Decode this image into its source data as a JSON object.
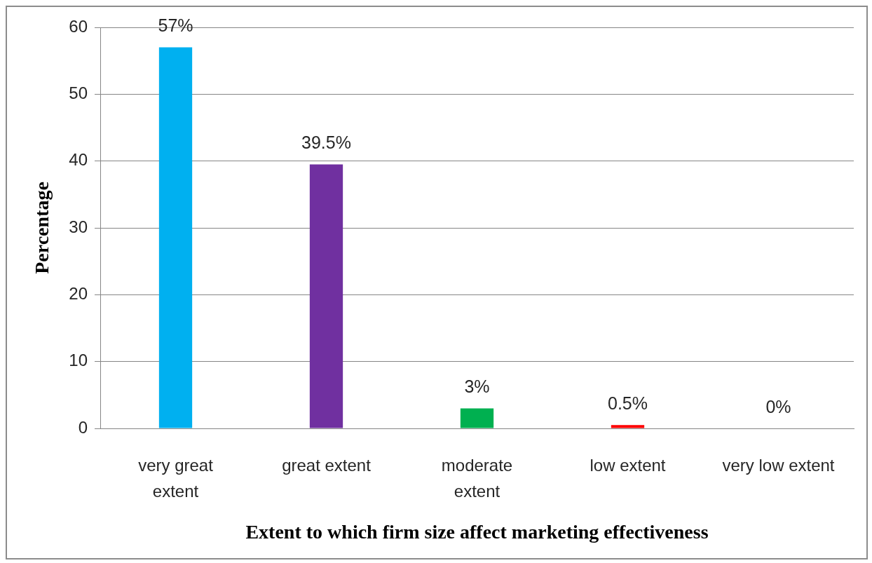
{
  "chart_data": {
    "type": "bar",
    "xlabel": "Extent to which firm size affect marketing effectiveness",
    "ylabel": "Percentage",
    "categories": [
      "very great extent",
      "great extent",
      "moderate extent",
      "low extent",
      "very low extent"
    ],
    "values": [
      57,
      39.5,
      3,
      0.5,
      0
    ],
    "colors": [
      "#00b0f0",
      "#7030a0",
      "#00b050",
      "#ff0000",
      "#ffc000"
    ],
    "value_labels": [
      "57%",
      "39.5%",
      "3%",
      "0.5%",
      "0%"
    ],
    "ylim": [
      0,
      60
    ],
    "yticks": [
      0,
      10,
      20,
      30,
      40,
      50,
      60
    ],
    "grid": "y"
  }
}
